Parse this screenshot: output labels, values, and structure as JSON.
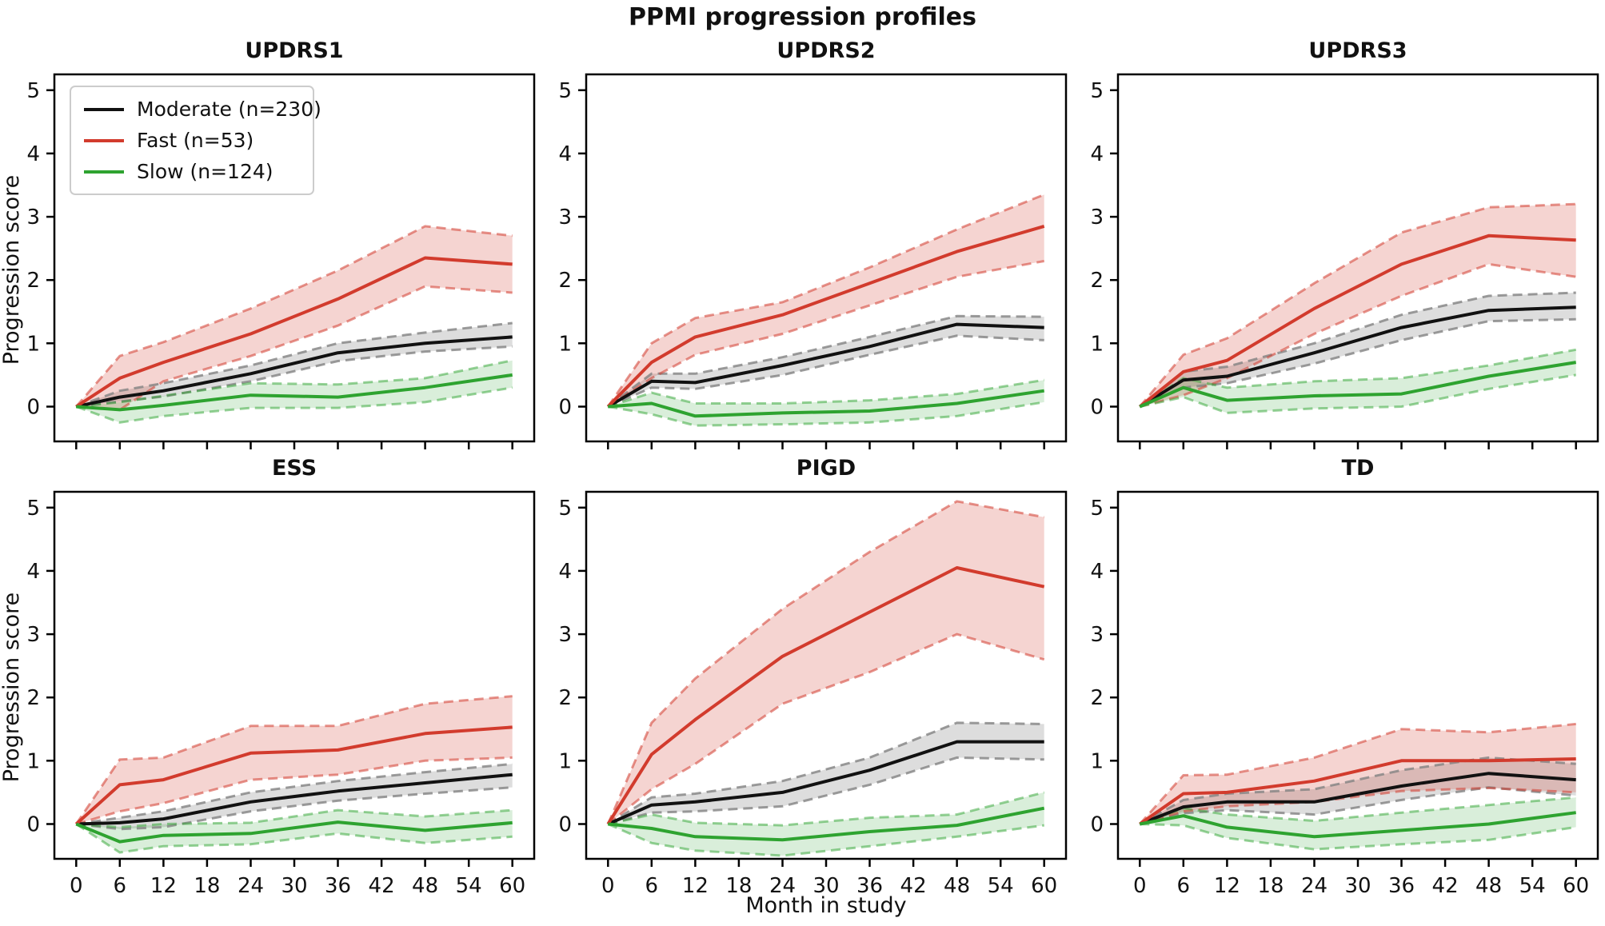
{
  "figure": {
    "suptitle": "PPMI progression profiles",
    "ylabel": "Progression score",
    "xlabel": "Month in study"
  },
  "chart_data": {
    "type": "line",
    "x": [
      0,
      6,
      12,
      24,
      36,
      48,
      60
    ],
    "xticks": [
      0,
      6,
      12,
      18,
      24,
      30,
      36,
      42,
      48,
      54,
      60
    ],
    "yticks": [
      0,
      1,
      2,
      3,
      4,
      5
    ],
    "xlim": [
      -3,
      63
    ],
    "ylim": [
      -0.55,
      5.25
    ],
    "xlabel": "Month in study",
    "ylabel": "Progression score",
    "legend_position": "upper-left-first-panel",
    "grid": false,
    "band_style": "shaded fill with dashed upper/lower confidence edges",
    "series_meta": [
      {
        "key": "moderate",
        "label": "Moderate (n=230)",
        "color": "#111111",
        "edge": "rgba(130,130,130,0.8)",
        "fill": "rgba(120,120,120,0.25)"
      },
      {
        "key": "fast",
        "label": "Fast (n=53)",
        "color": "#d23b2d",
        "edge": "rgba(210,59,45,0.55)",
        "fill": "rgba(210,59,45,0.22)"
      },
      {
        "key": "slow",
        "label": "Slow (n=124)",
        "color": "#2ea330",
        "edge": "rgba(46,163,48,0.5)",
        "fill": "rgba(46,163,48,0.18)"
      }
    ],
    "panels": [
      {
        "title": "UPDRS1",
        "series": [
          {
            "key": "moderate",
            "mean": [
              0,
              0.15,
              0.25,
              0.52,
              0.85,
              1.0,
              1.1
            ],
            "upper": [
              0,
              0.25,
              0.37,
              0.65,
              1.0,
              1.17,
              1.32
            ],
            "lower": [
              0,
              0.08,
              0.16,
              0.4,
              0.72,
              0.87,
              0.95
            ]
          },
          {
            "key": "fast",
            "mean": [
              0,
              0.45,
              0.7,
              1.15,
              1.7,
              2.35,
              2.25
            ],
            "upper": [
              0,
              0.8,
              1.02,
              1.55,
              2.15,
              2.85,
              2.7
            ],
            "lower": [
              0,
              -0.05,
              0.4,
              0.8,
              1.28,
              1.9,
              1.8
            ]
          },
          {
            "key": "slow",
            "mean": [
              0,
              -0.05,
              0.02,
              0.18,
              0.15,
              0.3,
              0.5
            ],
            "upper": [
              0,
              0.07,
              0.17,
              0.37,
              0.35,
              0.45,
              0.73
            ],
            "lower": [
              0,
              -0.25,
              -0.15,
              -0.02,
              -0.02,
              0.07,
              0.3
            ]
          }
        ]
      },
      {
        "title": "UPDRS2",
        "series": [
          {
            "key": "moderate",
            "mean": [
              0,
              0.4,
              0.38,
              0.65,
              0.95,
              1.3,
              1.25
            ],
            "upper": [
              0,
              0.52,
              0.52,
              0.78,
              1.1,
              1.43,
              1.42
            ],
            "lower": [
              0,
              0.3,
              0.28,
              0.5,
              0.82,
              1.12,
              1.05
            ]
          },
          {
            "key": "fast",
            "mean": [
              0,
              0.7,
              1.1,
              1.45,
              1.95,
              2.45,
              2.85
            ],
            "upper": [
              0,
              1.0,
              1.4,
              1.65,
              2.2,
              2.8,
              3.35
            ],
            "lower": [
              0,
              0.45,
              0.82,
              1.15,
              1.6,
              2.05,
              2.3
            ]
          },
          {
            "key": "slow",
            "mean": [
              0,
              0.05,
              -0.15,
              -0.1,
              -0.07,
              0.05,
              0.25
            ],
            "upper": [
              0,
              0.22,
              0.05,
              0.05,
              0.1,
              0.2,
              0.42
            ],
            "lower": [
              0,
              -0.12,
              -0.3,
              -0.28,
              -0.25,
              -0.15,
              0.07
            ]
          }
        ]
      },
      {
        "title": "UPDRS3",
        "series": [
          {
            "key": "moderate",
            "mean": [
              0,
              0.42,
              0.48,
              0.85,
              1.25,
              1.52,
              1.57
            ],
            "upper": [
              0,
              0.55,
              0.63,
              1.0,
              1.45,
              1.75,
              1.8
            ],
            "lower": [
              0,
              0.3,
              0.37,
              0.68,
              1.05,
              1.35,
              1.38
            ]
          },
          {
            "key": "fast",
            "mean": [
              0,
              0.55,
              0.73,
              1.55,
              2.25,
              2.7,
              2.63
            ],
            "upper": [
              0,
              0.82,
              1.08,
              1.95,
              2.75,
              3.15,
              3.2
            ],
            "lower": [
              0,
              0.18,
              0.45,
              1.15,
              1.75,
              2.25,
              2.05
            ]
          },
          {
            "key": "slow",
            "mean": [
              0,
              0.3,
              0.1,
              0.17,
              0.2,
              0.48,
              0.7
            ],
            "upper": [
              0,
              0.45,
              0.3,
              0.4,
              0.45,
              0.65,
              0.9
            ],
            "lower": [
              0,
              0.15,
              -0.1,
              -0.03,
              0.0,
              0.28,
              0.5
            ]
          }
        ]
      },
      {
        "title": "ESS",
        "series": [
          {
            "key": "moderate",
            "mean": [
              0,
              0.02,
              0.08,
              0.35,
              0.52,
              0.65,
              0.78
            ],
            "upper": [
              0,
              0.1,
              0.2,
              0.5,
              0.68,
              0.82,
              0.95
            ],
            "lower": [
              0,
              -0.08,
              -0.05,
              0.2,
              0.37,
              0.48,
              0.58
            ]
          },
          {
            "key": "fast",
            "mean": [
              0,
              0.62,
              0.7,
              1.12,
              1.17,
              1.43,
              1.53
            ],
            "upper": [
              0,
              1.02,
              1.05,
              1.55,
              1.55,
              1.9,
              2.02
            ],
            "lower": [
              0,
              0.2,
              0.33,
              0.7,
              0.78,
              1.0,
              1.05
            ]
          },
          {
            "key": "slow",
            "mean": [
              0,
              -0.28,
              -0.18,
              -0.15,
              0.03,
              -0.1,
              0.02
            ],
            "upper": [
              0,
              -0.05,
              0.0,
              0.02,
              0.22,
              0.12,
              0.22
            ],
            "lower": [
              0,
              -0.45,
              -0.35,
              -0.32,
              -0.15,
              -0.3,
              -0.2
            ]
          }
        ]
      },
      {
        "title": "PIGD",
        "series": [
          {
            "key": "moderate",
            "mean": [
              0,
              0.3,
              0.35,
              0.5,
              0.85,
              1.3,
              1.3
            ],
            "upper": [
              0,
              0.42,
              0.48,
              0.68,
              1.05,
              1.6,
              1.58
            ],
            "lower": [
              0,
              0.18,
              0.2,
              0.28,
              0.62,
              1.05,
              1.02
            ]
          },
          {
            "key": "fast",
            "mean": [
              0,
              1.1,
              1.65,
              2.65,
              3.35,
              4.05,
              3.75
            ],
            "upper": [
              0,
              1.6,
              2.3,
              3.4,
              4.3,
              5.1,
              4.85
            ],
            "lower": [
              0,
              0.55,
              0.95,
              1.9,
              2.4,
              3.0,
              2.6
            ]
          },
          {
            "key": "slow",
            "mean": [
              0,
              -0.07,
              -0.2,
              -0.25,
              -0.12,
              -0.02,
              0.25
            ],
            "upper": [
              0,
              0.15,
              0.02,
              -0.02,
              0.1,
              0.15,
              0.5
            ],
            "lower": [
              0,
              -0.3,
              -0.42,
              -0.5,
              -0.35,
              -0.2,
              -0.02
            ]
          }
        ]
      },
      {
        "title": "TD",
        "series": [
          {
            "key": "moderate",
            "mean": [
              0,
              0.27,
              0.35,
              0.35,
              0.6,
              0.8,
              0.7
            ],
            "upper": [
              0,
              0.38,
              0.48,
              0.55,
              0.85,
              1.05,
              0.95
            ],
            "lower": [
              0,
              0.17,
              0.22,
              0.15,
              0.38,
              0.58,
              0.45
            ]
          },
          {
            "key": "fast",
            "mean": [
              0,
              0.48,
              0.5,
              0.68,
              1.0,
              1.0,
              1.03
            ],
            "upper": [
              0,
              0.77,
              0.78,
              1.05,
              1.5,
              1.45,
              1.58
            ],
            "lower": [
              0,
              0.2,
              0.28,
              0.35,
              0.52,
              0.57,
              0.5
            ]
          },
          {
            "key": "slow",
            "mean": [
              0,
              0.13,
              -0.05,
              -0.2,
              -0.1,
              0.0,
              0.18
            ],
            "upper": [
              0,
              0.25,
              0.15,
              0.05,
              0.18,
              0.3,
              0.42
            ],
            "lower": [
              0,
              -0.02,
              -0.22,
              -0.4,
              -0.32,
              -0.25,
              -0.05
            ]
          }
        ]
      }
    ]
  }
}
